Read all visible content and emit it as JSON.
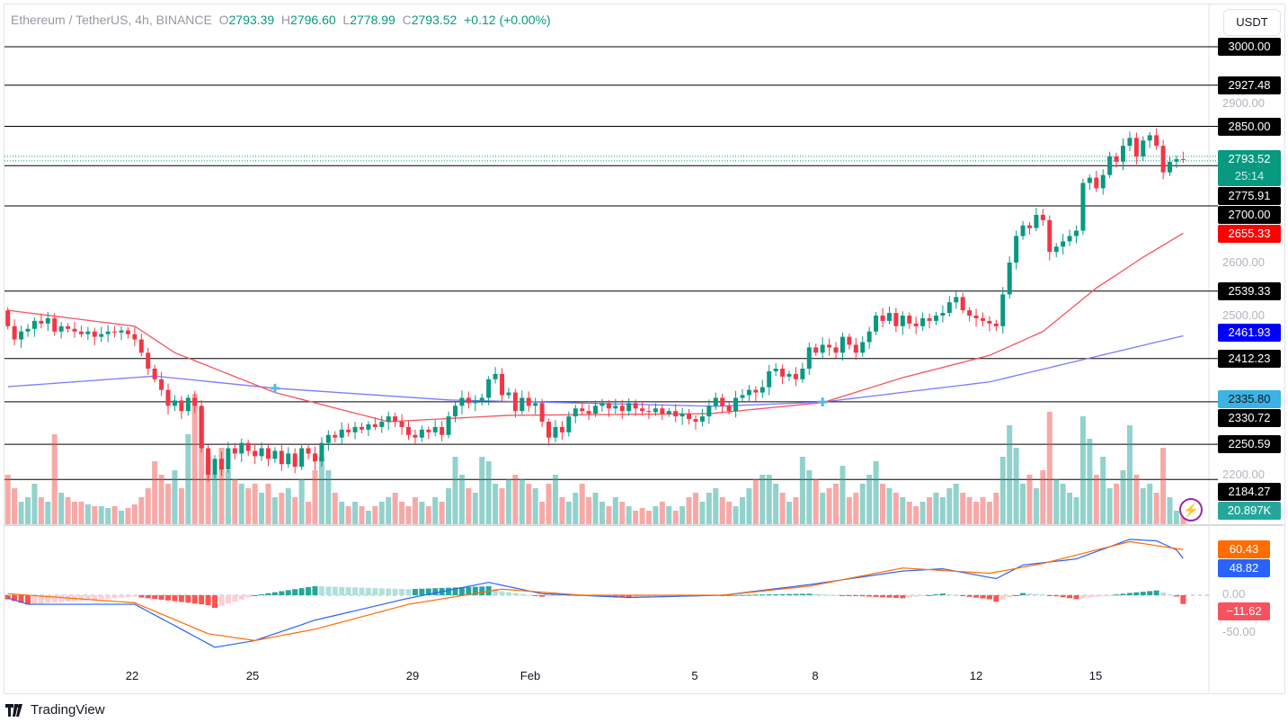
{
  "header": {
    "symbol": "Ethereum / TetherUS, 4h, BINANCE",
    "o_label": "O",
    "o": "2793.39",
    "h_label": "H",
    "h": "2796.60",
    "l_label": "L",
    "l": "2778.99",
    "c_label": "C",
    "c": "2793.52",
    "change": "+0.12 (+0.00%)"
  },
  "currency_button": "USDT",
  "footer": {
    "brand": "TradingView",
    "logo": "tradingview-logo-icon"
  },
  "colors": {
    "up": "#089981",
    "down": "#f23645",
    "ma_fast": "#f7525f",
    "ma_slow": "#7b7bff",
    "macd": "#2962ff",
    "signal": "#ff6d00"
  },
  "chart_data": {
    "type": "candlestick",
    "symbol": "ETHUSDT",
    "interval": "4h",
    "x_ticks": [
      "22",
      "25",
      "29",
      "Feb",
      "5",
      "8",
      "12",
      "15"
    ],
    "price_axis_ticks": [
      "2900.00",
      "2600.00",
      "2500.00",
      "2200.00"
    ],
    "ylim": [
      2140,
      3050
    ],
    "first_open": 2510,
    "closes": [
      2480,
      2455,
      2470,
      2475,
      2490,
      2485,
      2495,
      2470,
      2480,
      2475,
      2470,
      2465,
      2470,
      2460,
      2465,
      2470,
      2468,
      2472,
      2465,
      2455,
      2430,
      2400,
      2380,
      2360,
      2330,
      2340,
      2320,
      2345,
      2330,
      2250,
      2200,
      2230,
      2210,
      2250,
      2240,
      2260,
      2245,
      2235,
      2250,
      2230,
      2245,
      2220,
      2240,
      2215,
      2250,
      2240,
      2225,
      2260,
      2275,
      2270,
      2285,
      2280,
      2290,
      2285,
      2295,
      2290,
      2300,
      2310,
      2300,
      2290,
      2275,
      2270,
      2285,
      2280,
      2290,
      2275,
      2310,
      2330,
      2345,
      2335,
      2340,
      2345,
      2380,
      2390,
      2350,
      2355,
      2320,
      2345,
      2330,
      2335,
      2300,
      2270,
      2290,
      2280,
      2310,
      2325,
      2320,
      2315,
      2330,
      2335,
      2325,
      2330,
      2320,
      2335,
      2325,
      2320,
      2318,
      2325,
      2315,
      2320,
      2310,
      2315,
      2305,
      2300,
      2310,
      2330,
      2345,
      2330,
      2320,
      2345,
      2350,
      2360,
      2355,
      2365,
      2395,
      2400,
      2385,
      2390,
      2380,
      2400,
      2440,
      2430,
      2445,
      2440,
      2430,
      2460,
      2445,
      2430,
      2450,
      2470,
      2500,
      2490,
      2505,
      2480,
      2500,
      2485,
      2480,
      2495,
      2490,
      2500,
      2505,
      2525,
      2535,
      2510,
      2500,
      2495,
      2490,
      2485,
      2480,
      2540,
      2600,
      2650,
      2670,
      2665,
      2690,
      2680,
      2620,
      2630,
      2640,
      2650,
      2660,
      2750,
      2760,
      2740,
      2765,
      2800,
      2790,
      2820,
      2835,
      2800,
      2830,
      2840,
      2820,
      2770,
      2790,
      2795,
      2793.52
    ],
    "volume_k": [
      55,
      40,
      25,
      30,
      45,
      30,
      25,
      100,
      35,
      30,
      25,
      25,
      22,
      20,
      20,
      18,
      20,
      15,
      18,
      22,
      30,
      40,
      70,
      55,
      45,
      60,
      40,
      100,
      145,
      130,
      75,
      55,
      85,
      60,
      50,
      45,
      40,
      45,
      35,
      45,
      30,
      35,
      40,
      30,
      50,
      25,
      60,
      75,
      60,
      35,
      25,
      20,
      25,
      20,
      15,
      20,
      25,
      30,
      35,
      25,
      20,
      30,
      25,
      20,
      30,
      25,
      40,
      75,
      55,
      40,
      35,
      75,
      70,
      45,
      40,
      50,
      55,
      50,
      45,
      40,
      25,
      45,
      55,
      30,
      25,
      35,
      45,
      30,
      35,
      25,
      20,
      30,
      25,
      20,
      15,
      18,
      15,
      20,
      25,
      20,
      15,
      20,
      30,
      35,
      25,
      35,
      40,
      30,
      25,
      20,
      30,
      40,
      50,
      55,
      55,
      45,
      35,
      25,
      30,
      75,
      60,
      50,
      35,
      40,
      45,
      65,
      30,
      35,
      45,
      55,
      70,
      45,
      40,
      35,
      30,
      25,
      20,
      25,
      30,
      35,
      30,
      40,
      45,
      35,
      30,
      25,
      30,
      25,
      35,
      75,
      110,
      85,
      45,
      55,
      40,
      60,
      125,
      50,
      45,
      35,
      30,
      120,
      95,
      55,
      75,
      40,
      45,
      60,
      110,
      55,
      40,
      45,
      35,
      85,
      30,
      15,
      20.897
    ],
    "ma_fast_points": [
      [
        0,
        2510
      ],
      [
        19,
        2480
      ],
      [
        25,
        2430
      ],
      [
        40,
        2355
      ],
      [
        57,
        2300
      ],
      [
        75,
        2312
      ],
      [
        105,
        2315
      ],
      [
        122,
        2336
      ],
      [
        134,
        2383
      ],
      [
        147,
        2425
      ],
      [
        155,
        2470
      ],
      [
        163,
        2552
      ],
      [
        170,
        2610
      ],
      [
        176,
        2655.33
      ]
    ],
    "ma_slow_points": [
      [
        0,
        2366
      ],
      [
        22,
        2386
      ],
      [
        40,
        2363
      ],
      [
        66,
        2341
      ],
      [
        106,
        2329
      ],
      [
        122,
        2337
      ],
      [
        147,
        2375
      ],
      [
        176,
        2461.93
      ]
    ],
    "macd_points": [
      [
        0,
        -3.5
      ],
      [
        3,
        -12
      ],
      [
        19,
        -12
      ],
      [
        26,
        -45
      ],
      [
        31,
        -69
      ],
      [
        37,
        -60
      ],
      [
        46,
        -33
      ],
      [
        60,
        -4
      ],
      [
        72,
        17
      ],
      [
        80,
        2
      ],
      [
        93,
        -3
      ],
      [
        107,
        0
      ],
      [
        120,
        14
      ],
      [
        134,
        32
      ],
      [
        140,
        35
      ],
      [
        148,
        22
      ],
      [
        152,
        40
      ],
      [
        160,
        48
      ],
      [
        168,
        74
      ],
      [
        172,
        72
      ],
      [
        175,
        60
      ],
      [
        176,
        48.82
      ]
    ],
    "signal_points": [
      [
        0,
        2
      ],
      [
        19,
        -10
      ],
      [
        30,
        -51
      ],
      [
        37,
        -60
      ],
      [
        46,
        -45
      ],
      [
        60,
        -12
      ],
      [
        74,
        8
      ],
      [
        86,
        0
      ],
      [
        107,
        0
      ],
      [
        120,
        12
      ],
      [
        134,
        36
      ],
      [
        147,
        29
      ],
      [
        155,
        42
      ],
      [
        168,
        71
      ],
      [
        176,
        60.43
      ]
    ],
    "macd_axis_ticks": [
      "0.00",
      "-50.00"
    ]
  },
  "price_labels": [
    {
      "value": 3000.0,
      "text": "3000.00",
      "bg": "#000000",
      "fg": "#ffffff",
      "line": true
    },
    {
      "value": 2927.48,
      "text": "2927.48",
      "bg": "#000000",
      "fg": "#ffffff",
      "line": true
    },
    {
      "value": 2850.0,
      "text": "2850.00",
      "bg": "#000000",
      "fg": "#ffffff",
      "line": true
    },
    {
      "value": 2775.91,
      "text": "2775.91",
      "bg": "#000000",
      "fg": "#ffffff",
      "line": true
    },
    {
      "value": 2700.0,
      "text": "2700.00",
      "bg": "#000000",
      "fg": "#ffffff",
      "line": true
    },
    {
      "value": 2655.33,
      "text": "2655.33",
      "bg": "#ff0000",
      "fg": "#ffffff",
      "line": false
    },
    {
      "value": 2539.33,
      "text": "2539.33",
      "bg": "#000000",
      "fg": "#ffffff",
      "line": true
    },
    {
      "value": 2461.93,
      "text": "2461.93",
      "bg": "#0000ff",
      "fg": "#ffffff",
      "line": false
    },
    {
      "value": 2412.23,
      "text": "2412.23",
      "bg": "#000000",
      "fg": "#ffffff",
      "line": true
    },
    {
      "value": 2335.8,
      "text": "2335.80",
      "bg": "#3bb3e4",
      "fg": "#131722",
      "line": false
    },
    {
      "value": 2330.72,
      "text": "2330.72",
      "bg": "#000000",
      "fg": "#ffffff",
      "line": true
    },
    {
      "value": 2250.59,
      "text": "2250.59",
      "bg": "#000000",
      "fg": "#ffffff",
      "line": true
    },
    {
      "value": 2184.27,
      "text": "2184.27",
      "bg": "#000000",
      "fg": "#ffffff",
      "line": true
    }
  ],
  "last_price": {
    "text": "2793.52",
    "countdown": "25:14",
    "bg": "#089981"
  },
  "volume_label": {
    "text": "20.897K",
    "bg": "#26a69a"
  },
  "macd_labels": [
    {
      "value": 60.43,
      "text": "60.43",
      "bg": "#ff6d00"
    },
    {
      "value": 48.82,
      "text": "48.82",
      "bg": "#2962ff"
    },
    {
      "value": -11.62,
      "text": "−11.62",
      "bg": "#f7525f"
    }
  ],
  "alert_icon": "lightning-icon"
}
